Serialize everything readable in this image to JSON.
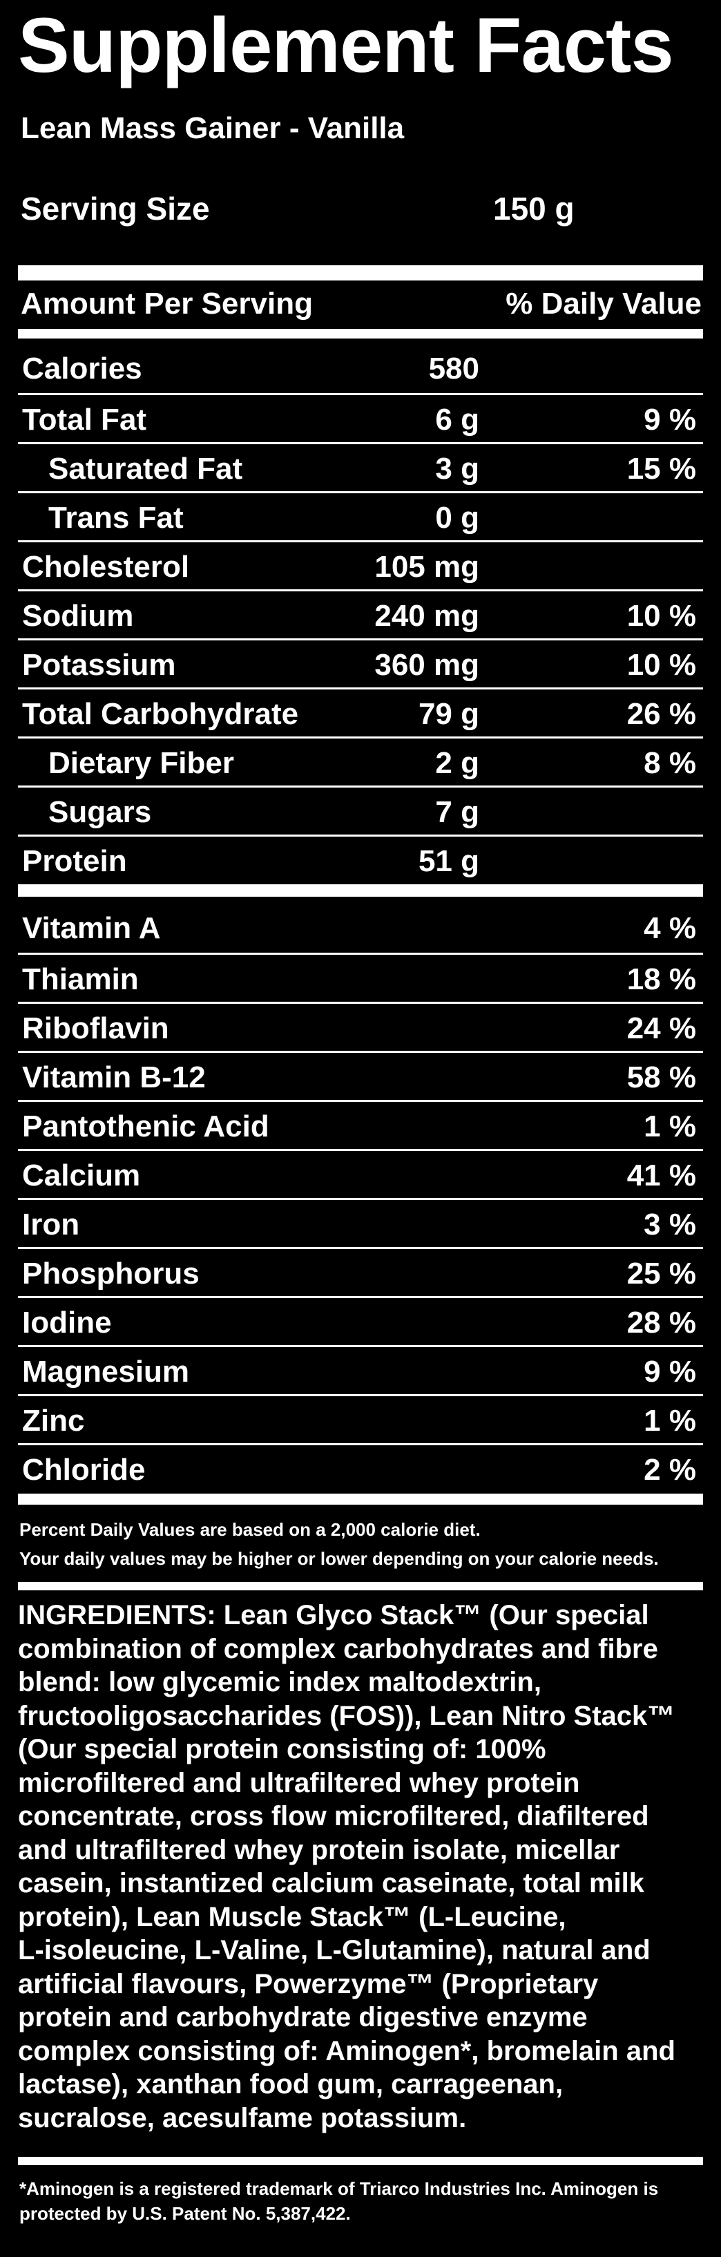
{
  "title": "Supplement Facts",
  "product": "Lean Mass Gainer - Vanilla",
  "serving": {
    "label": "Serving Size",
    "value": "150 g"
  },
  "header": {
    "amount": "Amount Per Serving",
    "daily_value": "% Daily Value"
  },
  "macros": [
    {
      "name": "Calories",
      "amount": "580",
      "dv": "",
      "indent": false
    },
    {
      "name": "Total Fat",
      "amount": "6 g",
      "dv": "9 %",
      "indent": false
    },
    {
      "name": "Saturated Fat",
      "amount": "3 g",
      "dv": "15 %",
      "indent": true
    },
    {
      "name": "Trans Fat",
      "amount": "0 g",
      "dv": "",
      "indent": true
    },
    {
      "name": "Cholesterol",
      "amount": "105 mg",
      "dv": "",
      "indent": false
    },
    {
      "name": "Sodium",
      "amount": "240 mg",
      "dv": "10 %",
      "indent": false
    },
    {
      "name": "Potassium",
      "amount": "360 mg",
      "dv": "10 %",
      "indent": false
    },
    {
      "name": "Total Carbohydrate",
      "amount": "79 g",
      "dv": "26 %",
      "indent": false
    },
    {
      "name": "Dietary Fiber",
      "amount": "2 g",
      "dv": "8 %",
      "indent": true
    },
    {
      "name": "Sugars",
      "amount": "7 g",
      "dv": "",
      "indent": true
    },
    {
      "name": "Protein",
      "amount": "51 g",
      "dv": "",
      "indent": false
    }
  ],
  "vitamins": [
    {
      "name": "Vitamin A",
      "dv": "4 %"
    },
    {
      "name": "Thiamin",
      "dv": "18 %"
    },
    {
      "name": "Riboflavin",
      "dv": "24 %"
    },
    {
      "name": "Vitamin B-12",
      "dv": "58 %"
    },
    {
      "name": "Pantothenic Acid",
      "dv": "1 %"
    },
    {
      "name": "Calcium",
      "dv": "41 %"
    },
    {
      "name": "Iron",
      "dv": "3 %"
    },
    {
      "name": "Phosphorus",
      "dv": "25 %"
    },
    {
      "name": "Iodine",
      "dv": "28 %"
    },
    {
      "name": "Magnesium",
      "dv": "9 %"
    },
    {
      "name": "Zinc",
      "dv": "1 %"
    },
    {
      "name": "Chloride",
      "dv": "2 %"
    }
  ],
  "dv_note": {
    "line1": "Percent Daily Values are based on a 2,000 calorie diet.",
    "line2": "Your daily values may be higher or lower depending on your calorie needs."
  },
  "ingredients": {
    "label": "INGREDIENTS:",
    "lines": [
      " Lean Glyco Stack™ (Our special",
      "combination of complex carbohydrates and fibre",
      "blend: low glycemic index maltodextrin,",
      "fructooligosaccharides (FOS)), Lean Nitro Stack™",
      "(Our special protein consisting of: 100%",
      "microfiltered and ultrafiltered whey protein",
      "concentrate, cross flow microfiltered, diafiltered",
      "and ultrafiltered whey protein isolate, micellar",
      "casein, instantized calcium caseinate, total milk",
      "protein), Lean Muscle Stack™ (L-Leucine,",
      "L-isoleucine, L-Valine, L-Glutamine), natural and",
      "artificial flavours, Powerzyme™ (Proprietary",
      "protein and carbohydrate digestive enzyme",
      "complex consisting of: Aminogen*, bromelain and",
      "lactase), xanthan food gum, carrageenan,",
      "sucralose, acesulfame potassium."
    ]
  },
  "footnote": {
    "line1": "*Aminogen is a registered trademark of Triarco Industries Inc. Aminogen is",
    "line2": "protected by U.S. Patent No. 5,387,422."
  }
}
